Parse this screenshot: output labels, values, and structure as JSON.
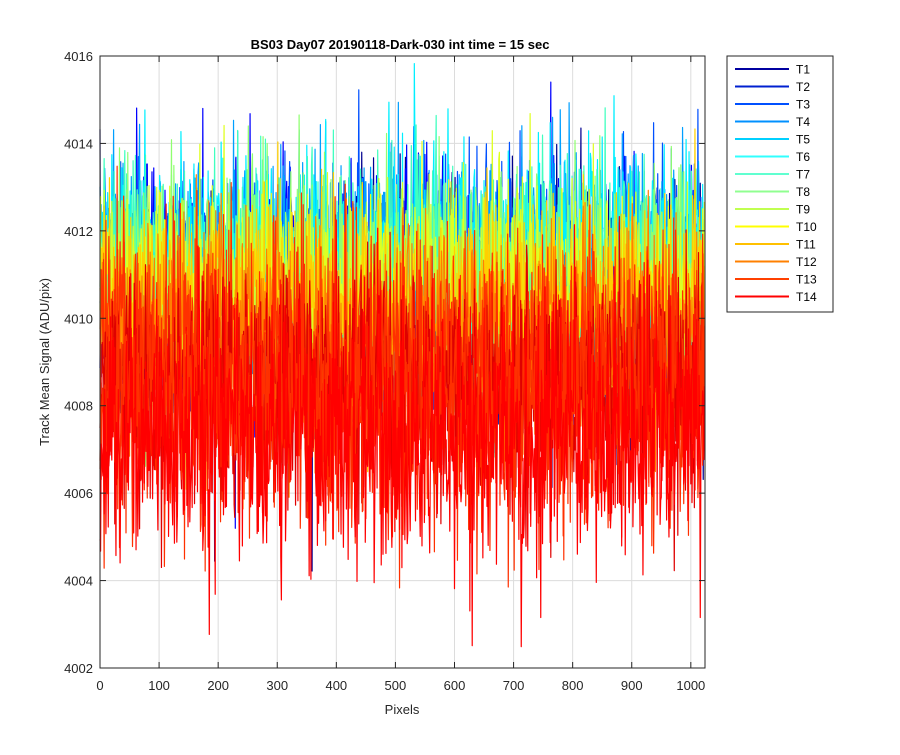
{
  "figure": {
    "background": "#ffffff"
  },
  "chart_data": {
    "type": "line",
    "title": "BS03 Day07 20190118-Dark-030 int time = 15 sec",
    "xlabel": "Pixels",
    "ylabel": "Track Mean Signal (ADU/pix)",
    "xlim": [
      0,
      1024
    ],
    "ylim": [
      4002,
      4016
    ],
    "xticks": [
      0,
      100,
      200,
      300,
      400,
      500,
      600,
      700,
      800,
      900,
      1000
    ],
    "yticks": [
      4002,
      4004,
      4006,
      4008,
      4010,
      4012,
      4014,
      4016
    ],
    "grid": true,
    "legend_position": "outside-top-right",
    "n_points": 1024,
    "series": [
      {
        "name": "T1",
        "color": "#00008f",
        "mean": 4010.3,
        "noise": 1.45
      },
      {
        "name": "T2",
        "color": "#0000ff",
        "mean": 4010.6,
        "noise": 1.4
      },
      {
        "name": "T3",
        "color": "#0050ff",
        "mean": 4010.9,
        "noise": 1.35
      },
      {
        "name": "T4",
        "color": "#009fff",
        "mean": 4011.2,
        "noise": 1.3
      },
      {
        "name": "T5",
        "color": "#00efff",
        "mean": 4011.3,
        "noise": 1.25
      },
      {
        "name": "T6",
        "color": "#40ffbf",
        "mean": 4011.1,
        "noise": 1.25
      },
      {
        "name": "T7",
        "color": "#8fff70",
        "mean": 4010.9,
        "noise": 1.25
      },
      {
        "name": "T8",
        "color": "#dfff20",
        "mean": 4010.6,
        "noise": 1.25
      },
      {
        "name": "T9",
        "color": "#ffcf00",
        "mean": 4010.2,
        "noise": 1.25
      },
      {
        "name": "T10",
        "color": "#ff8000",
        "mean": 4009.7,
        "noise": 1.3
      },
      {
        "name": "T11",
        "color": "#ff3000",
        "mean": 4009.1,
        "noise": 1.35
      },
      {
        "name": "T12",
        "color": "#df0000",
        "mean": 4008.4,
        "noise": 1.4
      },
      {
        "name": "T13",
        "color": "#ff3000",
        "mean": 4008.0,
        "noise": 1.45
      },
      {
        "name": "T14",
        "color": "#ff0000",
        "mean": 4007.4,
        "noise": 1.5
      }
    ],
    "legend_colors": [
      "#0000a0",
      "#0020d0",
      "#0050ff",
      "#0090ff",
      "#00d0ff",
      "#30ffff",
      "#60ffd0",
      "#90ff90",
      "#c0ff50",
      "#ffff00",
      "#ffc000",
      "#ff8000",
      "#ff4000",
      "#ff0000"
    ]
  }
}
